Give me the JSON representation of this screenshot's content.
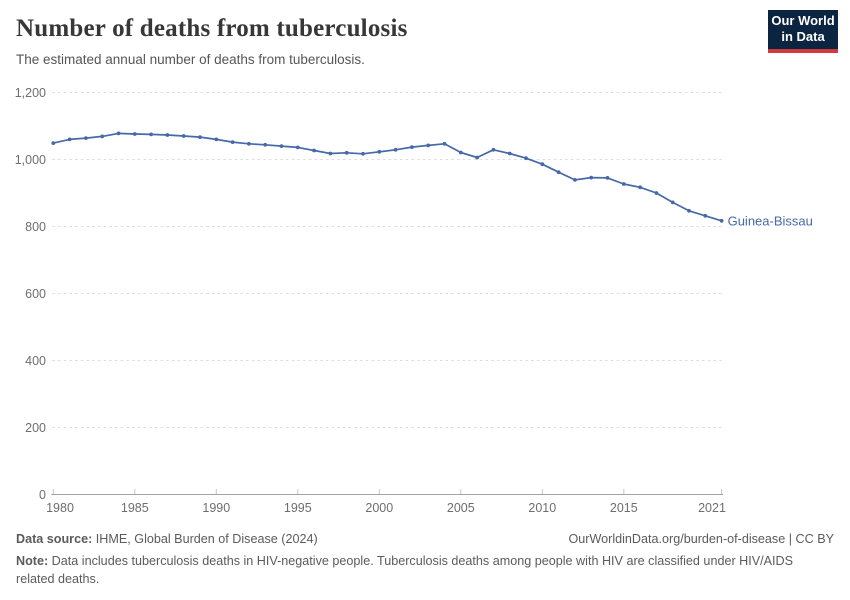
{
  "header": {
    "title": "Number of deaths from tuberculosis",
    "subtitle": "The estimated annual number of deaths from tuberculosis.",
    "logo": {
      "line1": "Our World",
      "line2": "in Data"
    }
  },
  "chart_data": {
    "type": "line",
    "title": "Number of deaths from tuberculosis",
    "xlabel": "",
    "ylabel": "",
    "xlim": [
      1980,
      2021
    ],
    "ylim": [
      0,
      1200
    ],
    "grid": "horizontal-dashed",
    "legend_position": "end-of-line-label",
    "end_label": "Guinea-Bissau",
    "x_ticks": [
      {
        "value": 1980,
        "label": "1980"
      },
      {
        "value": 1985,
        "label": "1985"
      },
      {
        "value": 1990,
        "label": "1990"
      },
      {
        "value": 1995,
        "label": "1995"
      },
      {
        "value": 2000,
        "label": "2000"
      },
      {
        "value": 2005,
        "label": "2005"
      },
      {
        "value": 2010,
        "label": "2010"
      },
      {
        "value": 2015,
        "label": "2015"
      },
      {
        "value": 2021,
        "label": "2021"
      }
    ],
    "y_ticks": [
      {
        "value": 0,
        "label": "0"
      },
      {
        "value": 200,
        "label": "200"
      },
      {
        "value": 400,
        "label": "400"
      },
      {
        "value": 600,
        "label": "600"
      },
      {
        "value": 800,
        "label": "800"
      },
      {
        "value": 1000,
        "label": "1,000"
      },
      {
        "value": 1200,
        "label": "1,200"
      }
    ],
    "series": [
      {
        "name": "Guinea-Bissau",
        "color": "#4769a8",
        "x": [
          1980,
          1981,
          1982,
          1983,
          1984,
          1985,
          1986,
          1987,
          1988,
          1989,
          1990,
          1991,
          1992,
          1993,
          1994,
          1995,
          1996,
          1997,
          1998,
          1999,
          2000,
          2001,
          2002,
          2003,
          2004,
          2005,
          2006,
          2007,
          2008,
          2009,
          2010,
          2011,
          2012,
          2013,
          2014,
          2015,
          2016,
          2017,
          2018,
          2019,
          2020,
          2021
        ],
        "values": [
          1049,
          1060,
          1064,
          1069,
          1078,
          1076,
          1075,
          1073,
          1070,
          1067,
          1060,
          1052,
          1047,
          1044,
          1040,
          1036,
          1027,
          1018,
          1020,
          1017,
          1023,
          1029,
          1037,
          1042,
          1047,
          1021,
          1006,
          1029,
          1018,
          1004,
          986,
          962,
          939,
          946,
          945,
          927,
          917,
          900,
          872,
          847,
          832,
          817
        ]
      }
    ]
  },
  "footer": {
    "source_label": "Data source:",
    "source_text": " IHME, Global Burden of Disease (2024)",
    "link_text": "OurWorldinData.org/burden-of-disease | CC BY",
    "note_label": "Note:",
    "note_text": " Data includes tuberculosis deaths in HIV-negative people. Tuberculosis deaths among people with HIV are classified under HIV/AIDS related deaths."
  },
  "colors": {
    "series": "#4769a8",
    "title": "#373737",
    "subtitle": "#565656",
    "tick_text": "#6e6e6e",
    "gridline": "#dcdcdc",
    "axis_line": "#a3a3a3",
    "tick_mark": "#c6c6c6",
    "logo_bg": "#0b2540",
    "logo_stripe": "#cf3a3e",
    "footer_text": "#5b5b5b"
  }
}
